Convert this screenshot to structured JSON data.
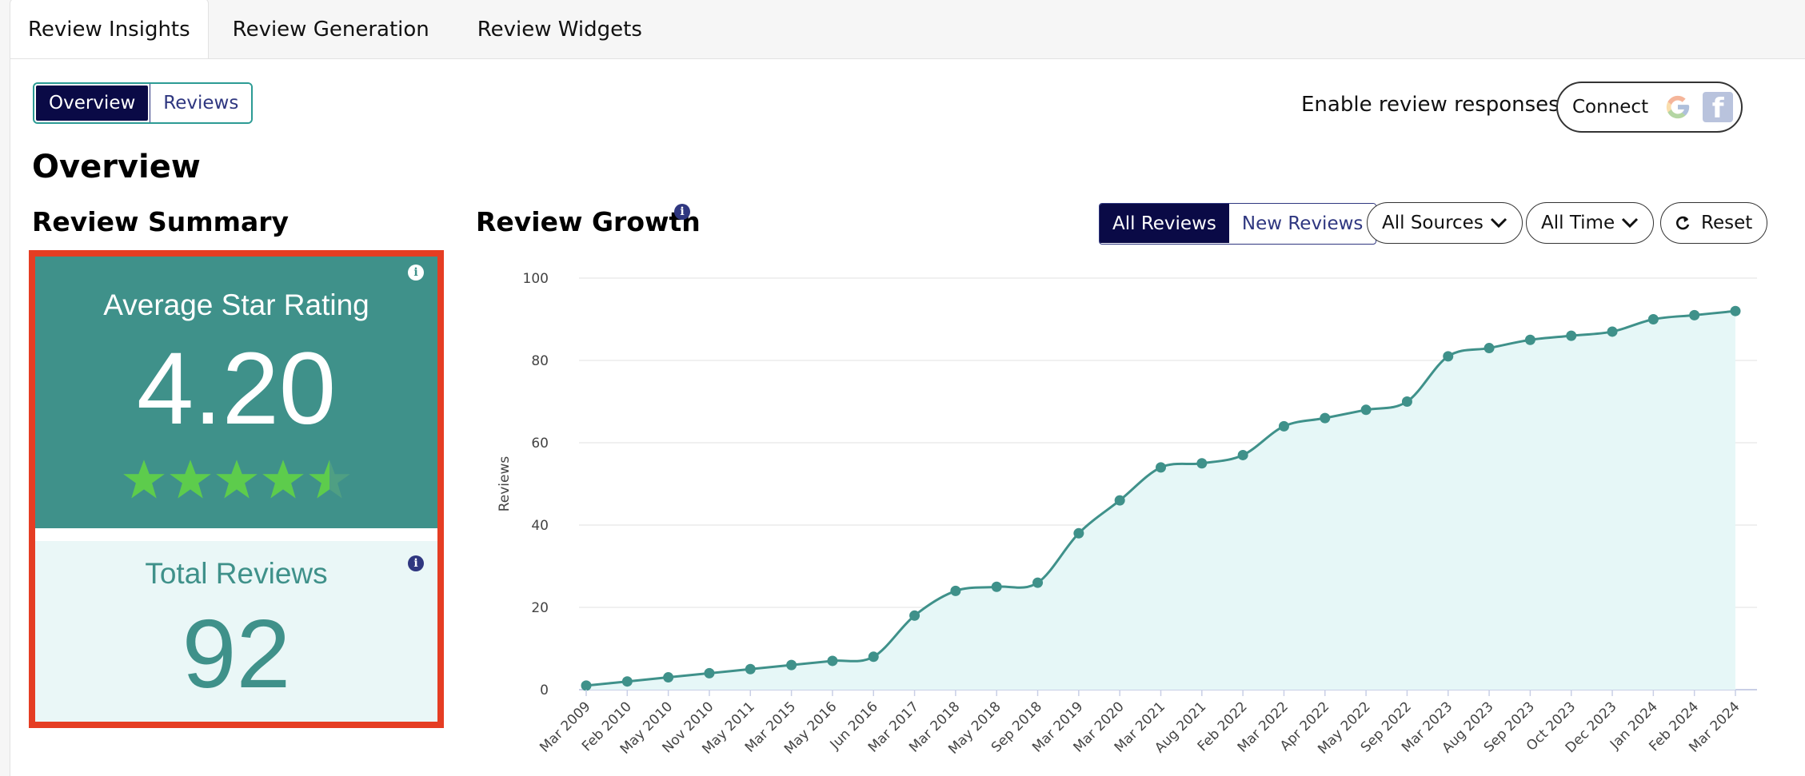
{
  "tabs": [
    {
      "label": "Review Insights",
      "active": true
    },
    {
      "label": "Review Generation",
      "active": false
    },
    {
      "label": "Review Widgets",
      "active": false
    }
  ],
  "view_toggle": {
    "overview": "Overview",
    "reviews": "Reviews",
    "selected": "Overview"
  },
  "responses": {
    "label": "Enable review responses:",
    "connect": "Connect",
    "icons": [
      "google-icon",
      "facebook-icon"
    ]
  },
  "page_title": "Overview",
  "summary": {
    "title": "Review Summary",
    "avg_label": "Average Star Rating",
    "avg_value": "4.20",
    "stars": 4.2,
    "total_label": "Total Reviews",
    "total_value": "92"
  },
  "growth": {
    "title": "Review Growth",
    "mode_all": "All Reviews",
    "mode_new": "New Reviews",
    "sources": "All Sources",
    "time": "All Time",
    "reset": "Reset"
  },
  "colors": {
    "teal": "#3f918a",
    "navy": "#0a0a46",
    "highlight": "#e53d23",
    "star": "#5dcc4c"
  },
  "chart_data": {
    "type": "area",
    "ylabel": "Reviews",
    "xlabel": "",
    "ylim": [
      0,
      100
    ],
    "yticks": [
      0,
      20,
      40,
      60,
      80,
      100
    ],
    "grid": true,
    "categories": [
      "Mar 2009",
      "Feb 2010",
      "May 2010",
      "Nov 2010",
      "May 2011",
      "Mar 2015",
      "May 2016",
      "Jun 2016",
      "Mar 2017",
      "Mar 2018",
      "May 2018",
      "Sep 2018",
      "Mar 2019",
      "Mar 2020",
      "Mar 2021",
      "Aug 2021",
      "Feb 2022",
      "Mar 2022",
      "Apr 2022",
      "May 2022",
      "Sep 2022",
      "Mar 2023",
      "Aug 2023",
      "Sep 2023",
      "Oct 2023",
      "Dec 2023",
      "Jan 2024",
      "Feb 2024",
      "Mar 2024"
    ],
    "series": [
      {
        "values": [
          1,
          2,
          3,
          4,
          5,
          6,
          7,
          8,
          18,
          24,
          25,
          26,
          38,
          46,
          54,
          55,
          57,
          64,
          66,
          68,
          70,
          81,
          83,
          85,
          86,
          87,
          90,
          91,
          92
        ]
      }
    ]
  }
}
